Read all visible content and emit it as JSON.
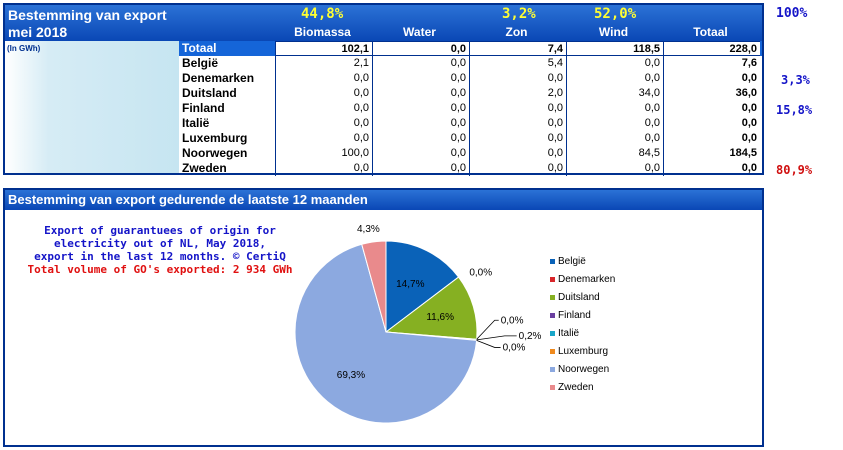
{
  "header": {
    "title_line1": "Bestemming van export",
    "title_line2": "mei 2018",
    "unit": "(In GWh)",
    "top_percentages": {
      "biomassa": "44,8%",
      "zon": "3,2%",
      "wind": "52,0%"
    },
    "columns": [
      "Biomassa",
      "Water",
      "Zon",
      "Wind",
      "Totaal"
    ],
    "right_total_pct": "100%"
  },
  "table": {
    "total_row": {
      "label": "Totaal",
      "values": [
        "102,1",
        "0,0",
        "7,4",
        "118,5",
        "228,0"
      ]
    },
    "rows": [
      {
        "label": "België",
        "values": [
          "2,1",
          "0,0",
          "5,4",
          "0,0",
          "7,6"
        ],
        "share": "3,3%",
        "share_color": "#1414c8"
      },
      {
        "label": "Denemarken",
        "values": [
          "0,0",
          "0,0",
          "0,0",
          "0,0",
          "0,0"
        ],
        "share": "",
        "share_color": "#1414c8"
      },
      {
        "label": "Duitsland",
        "values": [
          "0,0",
          "0,0",
          "2,0",
          "34,0",
          "36,0"
        ],
        "share": "15,8%",
        "share_color": "#1414c8"
      },
      {
        "label": "Finland",
        "values": [
          "0,0",
          "0,0",
          "0,0",
          "0,0",
          "0,0"
        ],
        "share": "",
        "share_color": "#1414c8"
      },
      {
        "label": "Italië",
        "values": [
          "0,0",
          "0,0",
          "0,0",
          "0,0",
          "0,0"
        ],
        "share": "",
        "share_color": "#1414c8"
      },
      {
        "label": "Luxemburg",
        "values": [
          "0,0",
          "0,0",
          "0,0",
          "0,0",
          "0,0"
        ],
        "share": "",
        "share_color": "#1414c8"
      },
      {
        "label": "Noorwegen",
        "values": [
          "100,0",
          "0,0",
          "0,0",
          "84,5",
          "184,5"
        ],
        "share": "80,9%",
        "share_color": "#d01010"
      },
      {
        "label": "Zweden",
        "values": [
          "0,0",
          "0,0",
          "0,0",
          "0,0",
          "0,0"
        ],
        "share": "",
        "share_color": "#1414c8"
      }
    ]
  },
  "bottom": {
    "title": "Bestemming van export gedurende de laatste 12 maanden",
    "note_lines": [
      "Export of guarantuees of origin for",
      "electricity out of NL, May 2018,",
      "export in the last 12 months. © CertiQ"
    ],
    "note_total": "Total volume of GO's exported: 2 934 GWh"
  },
  "chart_data": {
    "type": "pie",
    "categories": [
      "België",
      "Denemarken",
      "Duitsland",
      "Finland",
      "Italië",
      "Luxemburg",
      "Noorwegen",
      "Zweden"
    ],
    "values": [
      14.7,
      0.0,
      11.6,
      0.0,
      0.2,
      0.0,
      69.3,
      4.3
    ],
    "labels": [
      "14,7%",
      "0,0%",
      "11,6%",
      "0,0%",
      "0,2%",
      "0,0%",
      "69,3%",
      "4,3%"
    ],
    "colors": [
      "#0a62b8",
      "#d8262a",
      "#86b022",
      "#6a3fa0",
      "#19a6c8",
      "#ef8a1e",
      "#8ca9e0",
      "#e98a8c"
    ],
    "legend_position": "right"
  }
}
